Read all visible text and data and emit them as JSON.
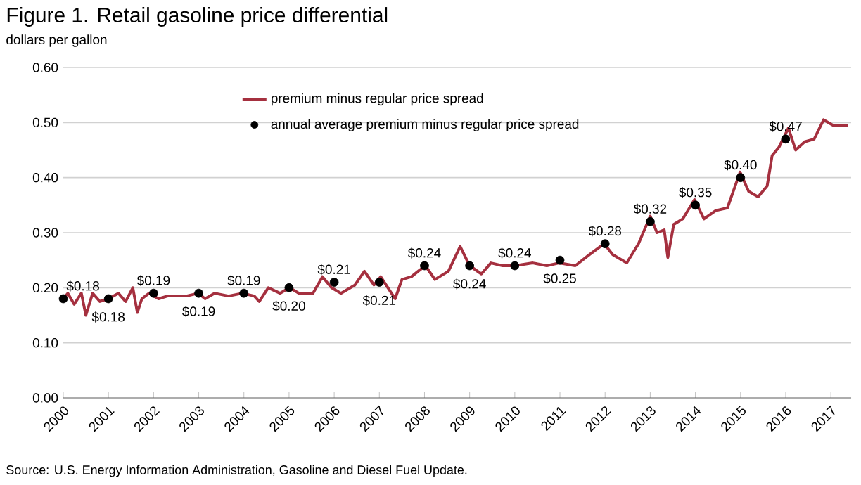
{
  "chart_data": {
    "type": "line",
    "title": "Figure 1. Retail gasoline price differential",
    "ylabel": "dollars per gallon",
    "xlim": [
      2000,
      2017.45
    ],
    "xticks": [
      2000,
      2001,
      2002,
      2003,
      2004,
      2005,
      2006,
      2007,
      2008,
      2009,
      2010,
      2011,
      2012,
      2013,
      2014,
      2015,
      2016,
      2017
    ],
    "ylim": [
      0,
      0.6
    ],
    "yticks": [
      {
        "value": 0,
        "label": "0.00"
      },
      {
        "value": 0.1,
        "label": "0.10"
      },
      {
        "value": 0.2,
        "label": "0.20"
      },
      {
        "value": 0.3,
        "label": "0.30"
      },
      {
        "value": 0.4,
        "label": "0.40"
      },
      {
        "value": 0.5,
        "label": "0.50"
      },
      {
        "value": 0.6,
        "label": "0.60"
      }
    ],
    "grid": "y",
    "legend": "top",
    "series": [
      {
        "name": "premium minus regular price spread",
        "color": "#a5303f",
        "x": [
          2000.0,
          2000.1,
          2000.24,
          2000.4,
          2000.5,
          2000.65,
          2000.81,
          2001.0,
          2001.22,
          2001.38,
          2001.54,
          2001.64,
          2001.74,
          2001.9,
          2002.11,
          2002.31,
          2002.73,
          2002.99,
          2003.14,
          2003.35,
          2003.66,
          2003.97,
          2004.23,
          2004.34,
          2004.54,
          2004.8,
          2005.01,
          2005.22,
          2005.53,
          2005.74,
          2005.94,
          2006.15,
          2006.46,
          2006.67,
          2006.88,
          2007.03,
          2007.19,
          2007.35,
          2007.5,
          2007.71,
          2007.86,
          2008.02,
          2008.23,
          2008.53,
          2008.79,
          2009.0,
          2009.26,
          2009.47,
          2009.73,
          2010.0,
          2010.4,
          2010.71,
          2010.98,
          2011.34,
          2011.65,
          2011.98,
          2012.17,
          2012.48,
          2012.74,
          2013.0,
          2013.15,
          2013.31,
          2013.39,
          2013.52,
          2013.72,
          2013.98,
          2014.19,
          2014.45,
          2014.71,
          2014.99,
          2015.18,
          2015.39,
          2015.59,
          2015.7,
          2015.85,
          2016.06,
          2016.22,
          2016.42,
          2016.63,
          2016.84,
          2017.05,
          2017.38
        ],
        "values": [
          0.18,
          0.19,
          0.17,
          0.19,
          0.15,
          0.19,
          0.175,
          0.18,
          0.19,
          0.175,
          0.2,
          0.155,
          0.18,
          0.19,
          0.18,
          0.185,
          0.185,
          0.19,
          0.18,
          0.19,
          0.185,
          0.19,
          0.185,
          0.175,
          0.2,
          0.19,
          0.2,
          0.19,
          0.19,
          0.22,
          0.2,
          0.19,
          0.205,
          0.23,
          0.205,
          0.22,
          0.2,
          0.18,
          0.215,
          0.22,
          0.23,
          0.24,
          0.215,
          0.23,
          0.275,
          0.24,
          0.225,
          0.245,
          0.24,
          0.24,
          0.245,
          0.24,
          0.245,
          0.24,
          0.26,
          0.28,
          0.26,
          0.245,
          0.28,
          0.33,
          0.3,
          0.305,
          0.255,
          0.315,
          0.325,
          0.36,
          0.325,
          0.34,
          0.345,
          0.41,
          0.375,
          0.365,
          0.385,
          0.44,
          0.455,
          0.49,
          0.45,
          0.465,
          0.47,
          0.505,
          0.495,
          0.495
        ]
      },
      {
        "name": "annual average premium minus regular price spread",
        "type": "scatter",
        "color": "#000000",
        "x": [
          2000,
          2001,
          2002,
          2003,
          2004,
          2005,
          2006,
          2007,
          2008,
          2009,
          2010,
          2011,
          2012,
          2013,
          2014,
          2015,
          2016
        ],
        "values": [
          0.18,
          0.18,
          0.19,
          0.19,
          0.19,
          0.2,
          0.21,
          0.21,
          0.24,
          0.24,
          0.24,
          0.25,
          0.28,
          0.32,
          0.35,
          0.4,
          0.47
        ],
        "value_labels": [
          "$0.18",
          "$0.18",
          "$0.19",
          "$0.19",
          "$0.19",
          "$0.20",
          "$0.21",
          "$0.21",
          "$0.24",
          "$0.24",
          "$0.24",
          "$0.25",
          "$0.28",
          "$0.32",
          "$0.35",
          "$0.40",
          "$0.47"
        ]
      }
    ],
    "annotations": [
      "Source: U.S. Energy Information Administration, Gasoline and Diesel Fuel Update."
    ]
  }
}
